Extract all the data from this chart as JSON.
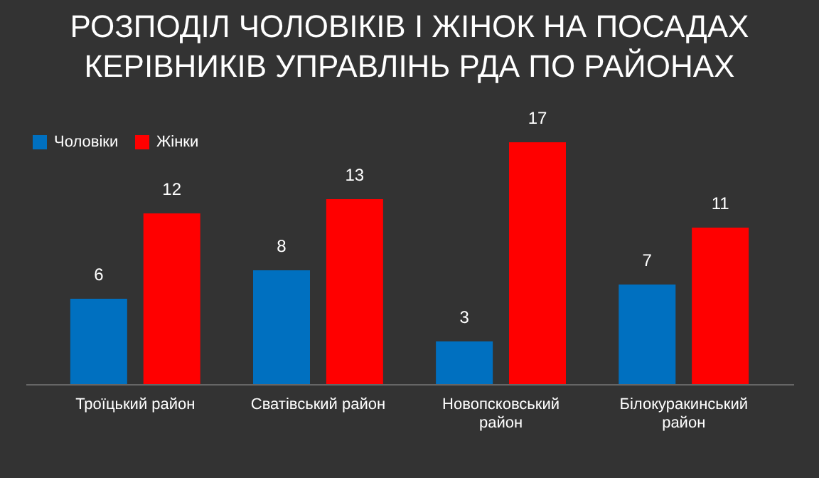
{
  "chart_data": {
    "type": "bar",
    "title": "РОЗПОДІЛ ЧОЛОВІКІВ І ЖІНОК НА ПОСАДАХ КЕРІВНИКІВ УПРАВЛІНЬ РДА ПО РАЙОНАХ",
    "categories": [
      "Троїцький район",
      "Сватівський район",
      "Новопсковський район",
      "Білокуракинський район"
    ],
    "series": [
      {
        "name": "Чоловіки",
        "color": "#0070c0",
        "values": [
          6,
          8,
          3,
          7
        ]
      },
      {
        "name": "Жінки",
        "color": "#ff0000",
        "values": [
          12,
          13,
          17,
          11
        ]
      }
    ],
    "data_labels": true,
    "legend": "top left",
    "grid": false
  }
}
